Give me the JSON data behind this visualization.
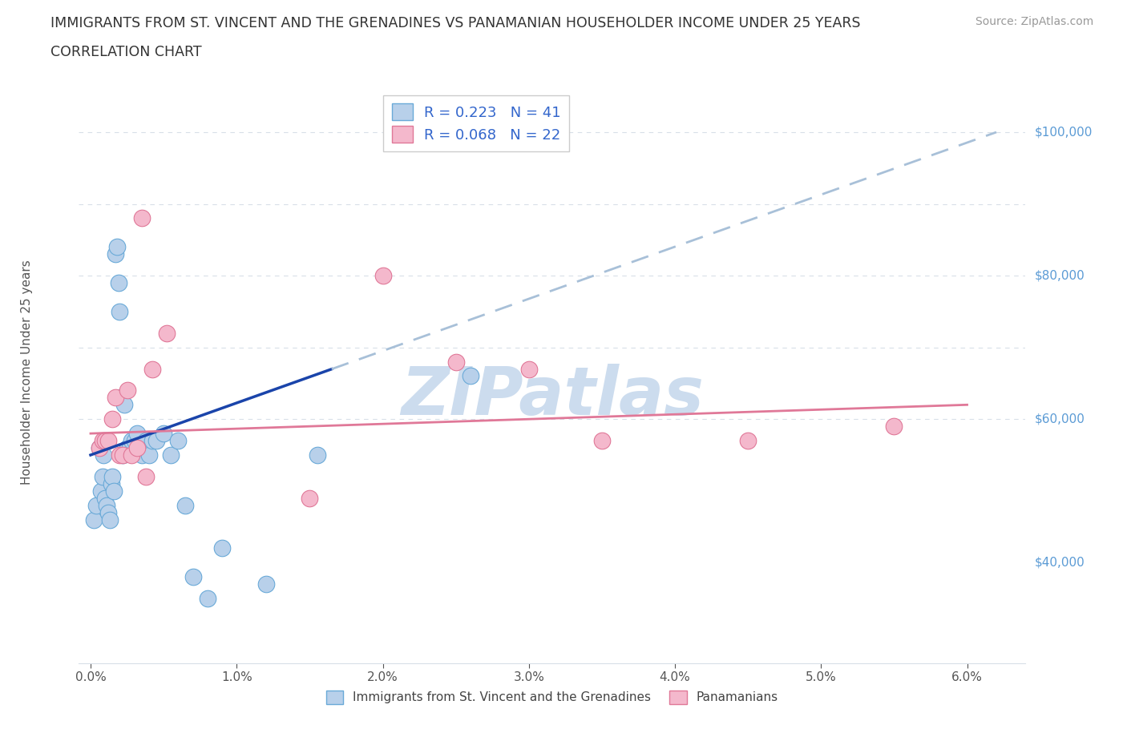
{
  "title_line1": "IMMIGRANTS FROM ST. VINCENT AND THE GRENADINES VS PANAMANIAN HOUSEHOLDER INCOME UNDER 25 YEARS",
  "title_line2": "CORRELATION CHART",
  "source": "Source: ZipAtlas.com",
  "ylabel": "Householder Income Under 25 years",
  "xlim": [
    -0.08,
    6.4
  ],
  "ylim": [
    26000,
    107000
  ],
  "blue_R": 0.223,
  "blue_N": 41,
  "pink_R": 0.068,
  "pink_N": 22,
  "blue_fill": "#b8d0ea",
  "blue_edge": "#6aaad8",
  "pink_fill": "#f4b8cc",
  "pink_edge": "#e07898",
  "blue_line_color": "#1a44aa",
  "pink_line_color": "#e07898",
  "dashed_color": "#a8c0d8",
  "grid_color": "#d8dfe8",
  "tick_color": "#555555",
  "right_label_color": "#5b9bd5",
  "title_color": "#333333",
  "source_color": "#999999",
  "legend1_label": "Immigrants from St. Vincent and the Grenadines",
  "legend2_label": "Panamanians",
  "blue_trend_x0": 0.0,
  "blue_trend_y0": 55000,
  "blue_trend_x1": 6.2,
  "blue_trend_y1": 100000,
  "pink_trend_x0": 0.0,
  "pink_trend_y0": 58000,
  "pink_trend_x1": 6.0,
  "pink_trend_y1": 62000,
  "blue_solid_end": 1.65,
  "blue_x": [
    0.02,
    0.04,
    0.06,
    0.07,
    0.08,
    0.09,
    0.1,
    0.1,
    0.11,
    0.12,
    0.13,
    0.14,
    0.15,
    0.16,
    0.17,
    0.18,
    0.19,
    0.2,
    0.21,
    0.22,
    0.23,
    0.25,
    0.27,
    0.28,
    0.3,
    0.32,
    0.35,
    0.38,
    0.4,
    0.42,
    0.45,
    0.5,
    0.55,
    0.6,
    0.65,
    0.7,
    0.8,
    0.9,
    1.2,
    1.55,
    2.6
  ],
  "blue_y": [
    46000,
    48000,
    56000,
    50000,
    52000,
    55000,
    57000,
    49000,
    48000,
    47000,
    46000,
    51000,
    52000,
    50000,
    83000,
    84000,
    79000,
    75000,
    63000,
    55000,
    62000,
    56000,
    56000,
    57000,
    57000,
    58000,
    55000,
    57000,
    55000,
    57000,
    57000,
    58000,
    55000,
    57000,
    48000,
    38000,
    35000,
    42000,
    37000,
    55000,
    66000
  ],
  "pink_x": [
    0.06,
    0.08,
    0.1,
    0.12,
    0.15,
    0.17,
    0.2,
    0.22,
    0.25,
    0.28,
    0.32,
    0.38,
    0.42,
    0.52,
    2.5,
    3.0,
    3.5,
    4.5,
    5.5,
    0.35,
    1.5,
    2.0
  ],
  "pink_y": [
    56000,
    57000,
    57000,
    57000,
    60000,
    63000,
    55000,
    55000,
    64000,
    55000,
    56000,
    52000,
    67000,
    72000,
    68000,
    67000,
    57000,
    57000,
    59000,
    88000,
    49000,
    80000
  ]
}
